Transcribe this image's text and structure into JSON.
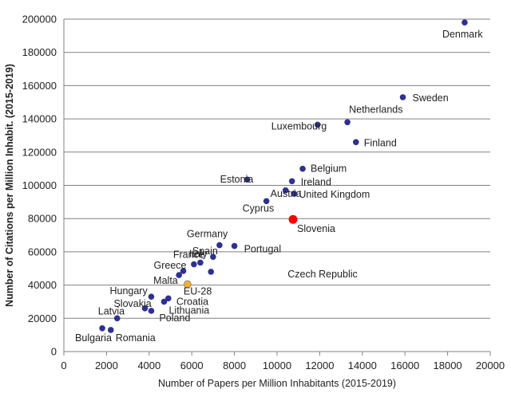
{
  "chart_data": {
    "type": "scatter",
    "xlabel": "Number of Papers per Million Inhabitants (2015-2019)",
    "ylabel": "Number of Citations per Million Inhabit. (2015-2019)",
    "xlim": [
      0,
      20000
    ],
    "ylim": [
      0,
      200000
    ],
    "xticks": [
      "0",
      "2000",
      "4000",
      "6000",
      "8000",
      "10000",
      "12000",
      "14000",
      "16000",
      "18000",
      "20000"
    ],
    "yticks": [
      "0",
      "20000",
      "40000",
      "60000",
      "80000",
      "100000",
      "120000",
      "140000",
      "160000",
      "180000",
      "200000"
    ],
    "grid": "horizontal",
    "colors": {
      "default": "#2e3192",
      "highlight": "#ff0000",
      "eu": "#f2b134"
    },
    "points": [
      {
        "label": "Denmark",
        "x": 18800,
        "y": 198000
      },
      {
        "label": "Sweden",
        "x": 15900,
        "y": 153000
      },
      {
        "label": "Netherlands",
        "x": 13300,
        "y": 138000
      },
      {
        "label": "Luxembourg",
        "x": 11900,
        "y": 136500
      },
      {
        "label": "Finland",
        "x": 13700,
        "y": 126000
      },
      {
        "label": "Belgium",
        "x": 11200,
        "y": 110000
      },
      {
        "label": "Ireland",
        "x": 10700,
        "y": 102500
      },
      {
        "label": "Estonia",
        "x": 8600,
        "y": 103500
      },
      {
        "label": "Austria",
        "x": 10400,
        "y": 97000
      },
      {
        "label": "United Kingdom",
        "x": 10800,
        "y": 95000
      },
      {
        "label": "Cyprus",
        "x": 9500,
        "y": 90500
      },
      {
        "label": "Slovenia",
        "x": 10750,
        "y": 79500,
        "highlight": true
      },
      {
        "label": "Germany",
        "x": 7300,
        "y": 64000
      },
      {
        "label": "Portugal",
        "x": 8000,
        "y": 63500
      },
      {
        "label": "Spain",
        "x": 7000,
        "y": 57000
      },
      {
        "label": "France",
        "x": 6100,
        "y": 52500
      },
      {
        "label": "Italy",
        "x": 6400,
        "y": 53500
      },
      {
        "label": "Greece",
        "x": 5600,
        "y": 48500
      },
      {
        "label": "Czech Republic",
        "x": 6900,
        "y": 48000
      },
      {
        "label": "Malta",
        "x": 5400,
        "y": 46000
      },
      {
        "label": "EU-28",
        "x": 5800,
        "y": 40500,
        "eu": true
      },
      {
        "label": "Hungary",
        "x": 4100,
        "y": 33000
      },
      {
        "label": "Croatia",
        "x": 4900,
        "y": 32000
      },
      {
        "label": "Slovakia",
        "x": 3800,
        "y": 26000
      },
      {
        "label": "Lithuania",
        "x": 4700,
        "y": 30000
      },
      {
        "label": "Poland",
        "x": 4100,
        "y": 24500
      },
      {
        "label": "Latvia",
        "x": 2500,
        "y": 20000
      },
      {
        "label": "Bulgaria",
        "x": 1800,
        "y": 14000
      },
      {
        "label": "Romania",
        "x": 2200,
        "y": 13000
      }
    ]
  }
}
